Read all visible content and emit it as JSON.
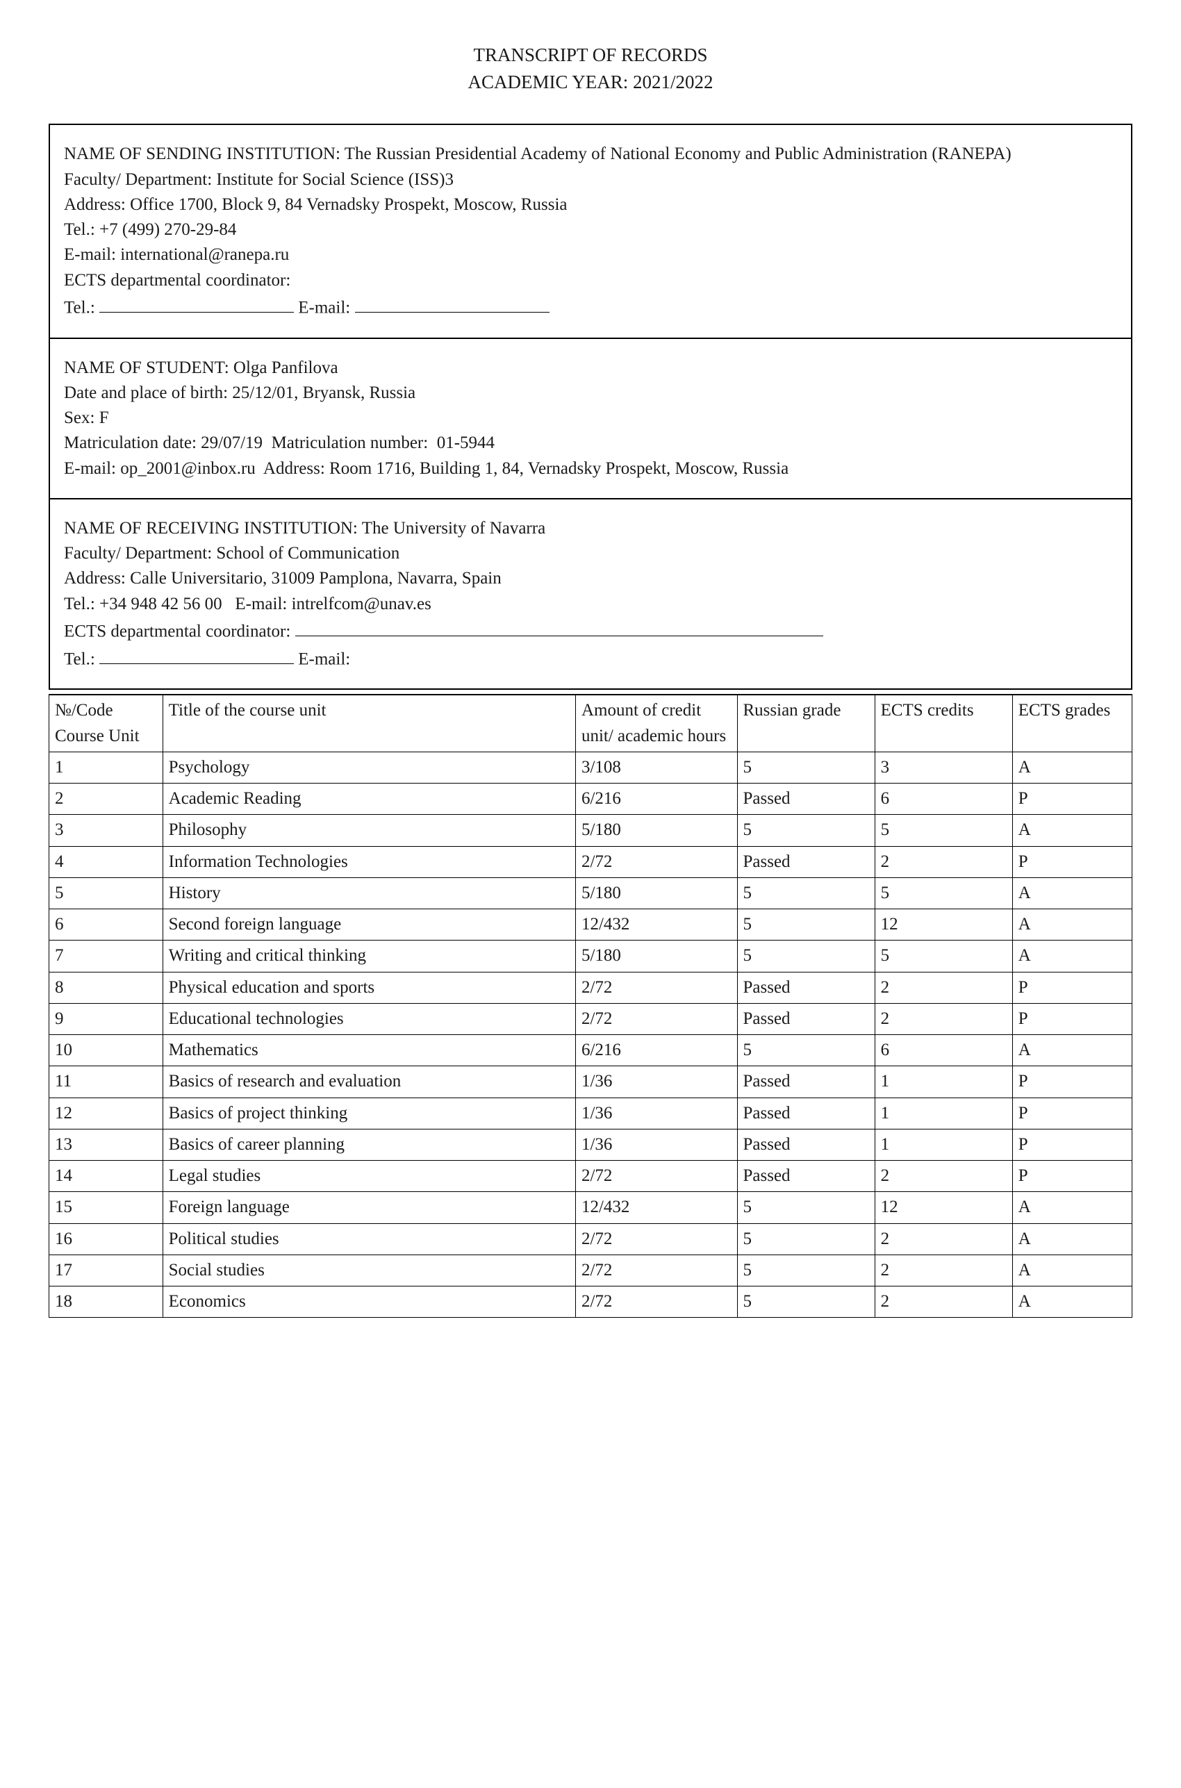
{
  "title_line1": "TRANSCRIPT OF RECORDS",
  "title_line2": "ACADEMIC YEAR: 2021/2022",
  "sending": {
    "label": "NAME OF SENDING INSTITUTION:",
    "name": "The Russian Presidential Academy of National Economy and Public Administration (RANEPA)",
    "fac_label": "Faculty/ Department:",
    "fac": "Institute for Social Science (ISS)3",
    "addr_label": "Address:",
    "addr": "Office 1700, Block 9, 84 Vernadsky Prospekt, Moscow, Russia",
    "tel_label": "Tel.:",
    "tel": "+7 (499) 270-29-84",
    "email_label": "E-mail:",
    "email": "international@ranepa.ru",
    "ects_label": "ECTS departmental coordinator:",
    "tel2_label": "Tel.:",
    "email2_label": "E-mail:"
  },
  "student": {
    "name_label": "NAME OF STUDENT:",
    "name": "Olga Panfilova",
    "dob_label": "Date and place of birth:",
    "dob": "25/12/01, Bryansk, Russia",
    "sex_label": "Sex:",
    "sex": "F",
    "matric_date_label": "Matriculation date:",
    "matric_date": "29/07/19",
    "matric_num_label": "Matriculation number:",
    "matric_num": "01-5944",
    "email_label": "E-mail:",
    "email": "op_2001@inbox.ru",
    "addr_label": "Address:",
    "addr": "Room 1716, Building 1, 84, Vernadsky Prospekt, Moscow, Russia"
  },
  "receiving": {
    "label": "NAME OF RECEIVING INSTITUTION:",
    "name": "The University of Navarra",
    "fac_label": "Faculty/ Department:",
    "fac": "School of Communication",
    "addr_label": "Address:",
    "addr": "Calle Universitario, 31009 Pamplona, Navarra, Spain",
    "tel_label": "Tel.:",
    "tel": "+34 948 42 56 00",
    "email_label": "E-mail:",
    "email": "intrelfcom@unav.es",
    "ects_label": "ECTS departmental coordinator:",
    "tel2_label": "Tel.:",
    "email2_label": "E-mail:"
  },
  "table": {
    "headers": {
      "code": "№/Code Course Unit",
      "title": "Title of the course unit",
      "amount": "Amount of credit unit/ academic hours",
      "rus": "Russian grade",
      "cred": "ECTS credits",
      "grade": "ECTS grades"
    },
    "rows": [
      {
        "n": "1",
        "title": "Psychology",
        "amount": "3/108",
        "rus": "5",
        "cred": "3",
        "grade": "A"
      },
      {
        "n": "2",
        "title": "Academic Reading",
        "amount": "6/216",
        "rus": "Passed",
        "cred": "6",
        "grade": "P"
      },
      {
        "n": "3",
        "title": "Philosophy",
        "amount": "5/180",
        "rus": "5",
        "cred": "5",
        "grade": "A"
      },
      {
        "n": "4",
        "title": "Information Technologies",
        "amount": "2/72",
        "rus": "Passed",
        "cred": "2",
        "grade": "P"
      },
      {
        "n": "5",
        "title": "History",
        "amount": "5/180",
        "rus": "5",
        "cred": "5",
        "grade": "A"
      },
      {
        "n": "6",
        "title": "Second foreign language",
        "amount": "12/432",
        "rus": "5",
        "cred": "12",
        "grade": "A"
      },
      {
        "n": "7",
        "title": "Writing and critical thinking",
        "amount": "5/180",
        "rus": "5",
        "cred": "5",
        "grade": "A"
      },
      {
        "n": "8",
        "title": "Physical education and sports",
        "amount": "2/72",
        "rus": "Passed",
        "cred": "2",
        "grade": "P"
      },
      {
        "n": "9",
        "title": "Educational technologies",
        "amount": "2/72",
        "rus": "Passed",
        "cred": "2",
        "grade": "P"
      },
      {
        "n": "10",
        "title": "Mathematics",
        "amount": "6/216",
        "rus": "5",
        "cred": "6",
        "grade": "A"
      },
      {
        "n": "11",
        "title": "Basics of research and evaluation",
        "amount": "1/36",
        "rus": "Passed",
        "cred": "1",
        "grade": "P"
      },
      {
        "n": "12",
        "title": "Basics of project thinking",
        "amount": "1/36",
        "rus": "Passed",
        "cred": "1",
        "grade": "P"
      },
      {
        "n": "13",
        "title": "Basics of career planning",
        "amount": "1/36",
        "rus": "Passed",
        "cred": "1",
        "grade": "P"
      },
      {
        "n": "14",
        "title": "Legal studies",
        "amount": "2/72",
        "rus": "Passed",
        "cred": "2",
        "grade": "P"
      },
      {
        "n": "15",
        "title": "Foreign language",
        "amount": "12/432",
        "rus": "5",
        "cred": "12",
        "grade": "A"
      },
      {
        "n": "16",
        "title": "Political studies",
        "amount": "2/72",
        "rus": "5",
        "cred": "2",
        "grade": "A"
      },
      {
        "n": "17",
        "title": "Social studies",
        "amount": "2/72",
        "rus": "5",
        "cred": "2",
        "grade": "A"
      },
      {
        "n": "18",
        "title": "Economics",
        "amount": "2/72",
        "rus": "5",
        "cred": "2",
        "grade": "A"
      }
    ]
  }
}
